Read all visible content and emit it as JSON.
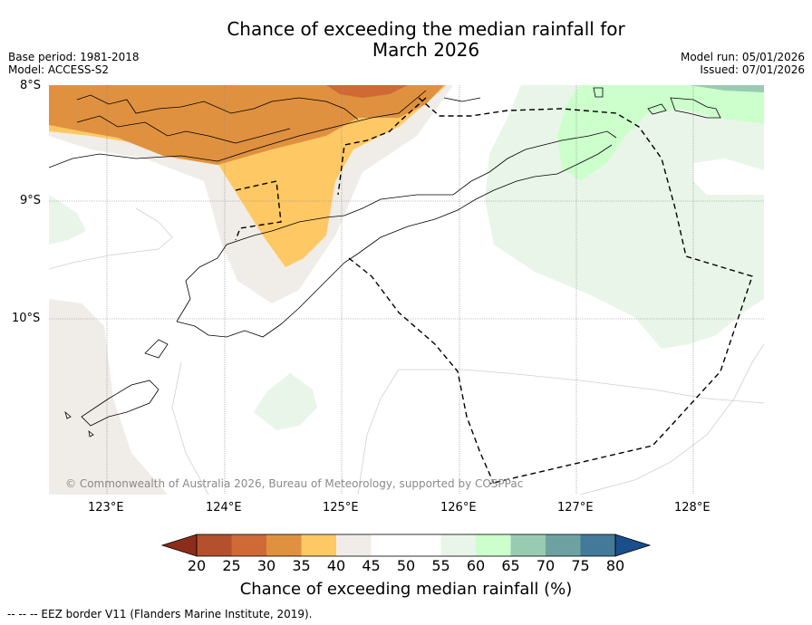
{
  "title": {
    "line1": "Chance of exceeding the median rainfall for",
    "line2": "March 2026"
  },
  "meta": {
    "base_period": "Base period: 1981-2018",
    "model": "Model: ACCESS-S2",
    "model_run": "Model run: 05/01/2026",
    "issued": "Issued: 07/01/2026"
  },
  "map": {
    "lat_labels": [
      "8°S",
      "9°S",
      "10°S"
    ],
    "lon_labels": [
      "123°E",
      "124°E",
      "125°E",
      "126°E",
      "127°E",
      "128°E"
    ],
    "copyright": "© Commonwealth of Australia 2026, Bureau of Meteorology, supported by COSPPac"
  },
  "colorbar": {
    "title": "Chance of exceeding median rainfall (%)",
    "tick_labels": [
      "20",
      "25",
      "30",
      "35",
      "40",
      "45",
      "50",
      "55",
      "60",
      "65",
      "70",
      "75",
      "80"
    ],
    "colors": [
      "#8c2d1a",
      "#b5502c",
      "#cf6a36",
      "#e0913f",
      "#fec864",
      "#f0ece8",
      "#ffffff",
      "#ffffff",
      "#e9f5e9",
      "#ccffcc",
      "#99cbb2",
      "#6ea2a2",
      "#447a99",
      "#1a4e8c"
    ]
  },
  "legend": {
    "eez": "--  --  -- EEZ border V11 (Flanders Marine Institute, 2019)."
  }
}
